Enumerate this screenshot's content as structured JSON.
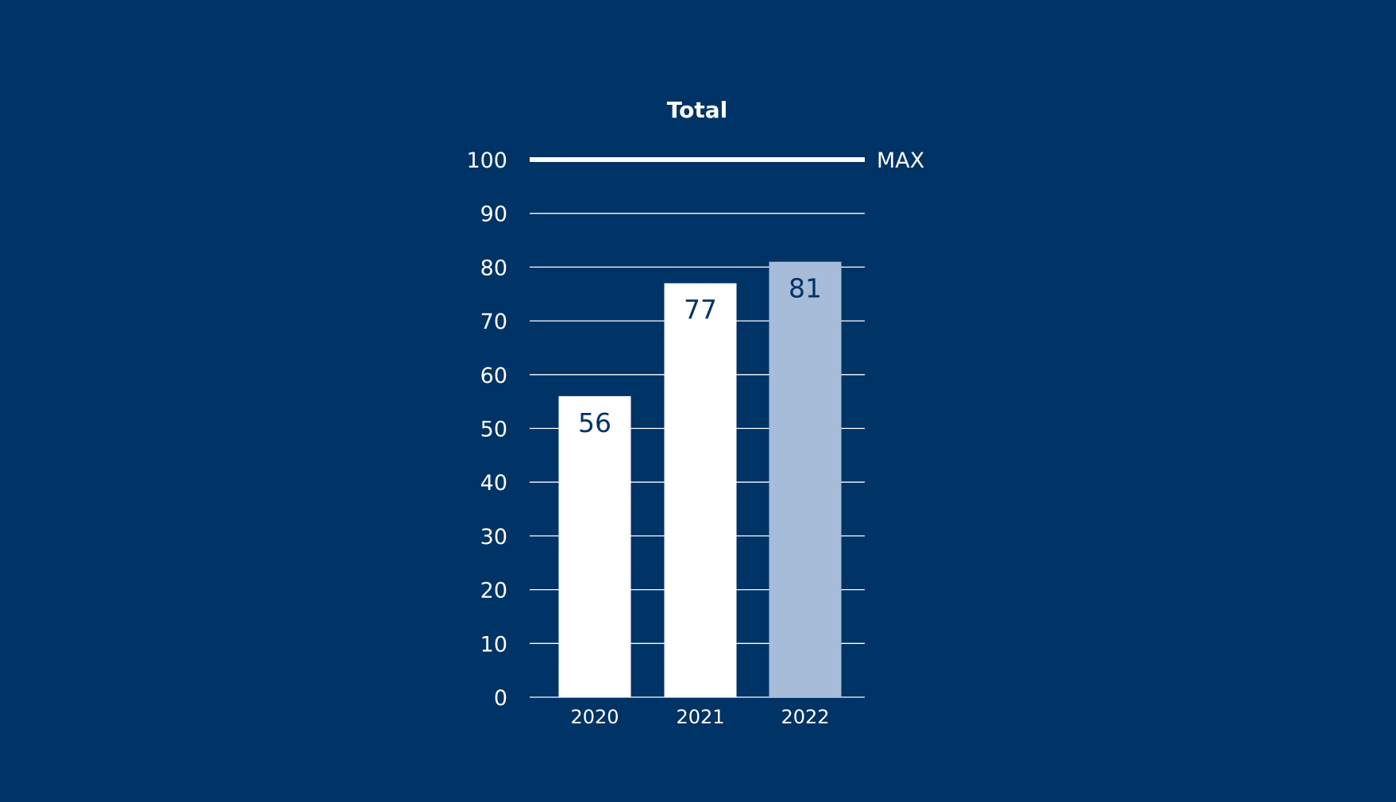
{
  "colors": {
    "background": "#003366",
    "bar_default": "#ffffff",
    "bar_highlight": "#a7bcd8",
    "label_on_bar": "#003366",
    "text": "#ffffff",
    "gridline": "#ffffff"
  },
  "chart_data": {
    "type": "bar",
    "title": "Total",
    "categories": [
      "2020",
      "2021",
      "2022"
    ],
    "values": [
      56,
      77,
      81
    ],
    "highlighted_category": "2022",
    "xlabel": "",
    "ylabel": "",
    "ylim": [
      0,
      100
    ],
    "yticks": [
      0,
      10,
      20,
      30,
      40,
      50,
      60,
      70,
      80,
      90,
      100
    ],
    "grid": true,
    "reference_line": {
      "value": 100,
      "label": "MAX"
    },
    "data_labels": [
      "56",
      "77",
      "81"
    ]
  }
}
